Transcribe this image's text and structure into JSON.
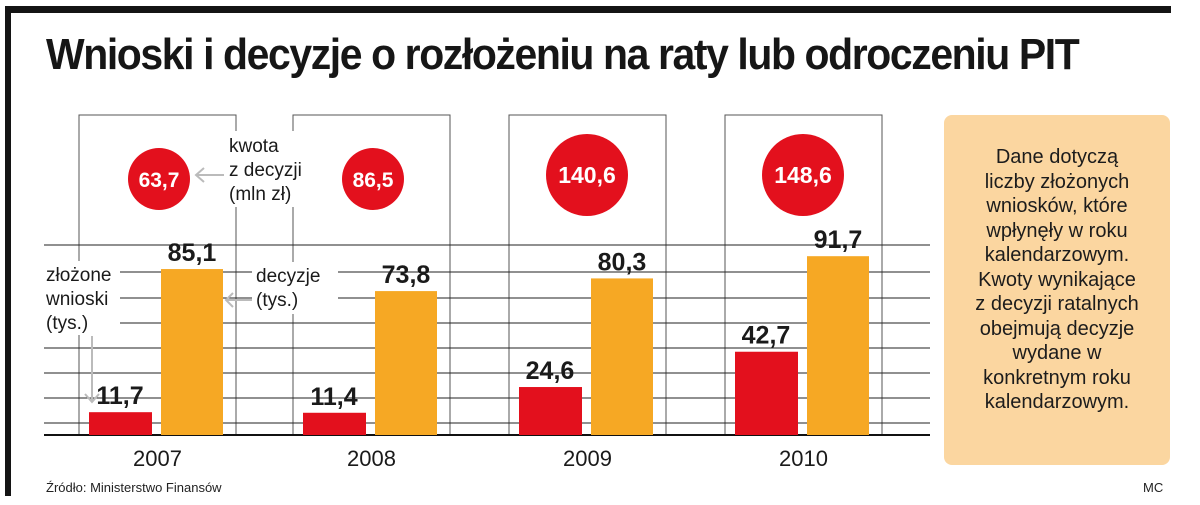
{
  "title": "Wnioski i decyzje o rozłożeniu na raty lub odroczeniu PIT",
  "colors": {
    "red": "#e3101d",
    "orange": "#f6a824",
    "grid": "#222222",
    "box": "#fbd6a0"
  },
  "chart_data": {
    "type": "bar",
    "categories": [
      "2007",
      "2008",
      "2009",
      "2010"
    ],
    "series": [
      {
        "name": "złożone wnioski (tys.)",
        "values": [
          11.7,
          11.4,
          24.6,
          42.7
        ],
        "labels": [
          "11,7",
          "11,4",
          "24,6",
          "42,7"
        ]
      },
      {
        "name": "decyzje (tys.)",
        "values": [
          85.1,
          73.8,
          80.3,
          91.7
        ],
        "labels": [
          "85,1",
          "73,8",
          "80,3",
          "91,7"
        ]
      }
    ],
    "amounts": {
      "name": "kwota z decyzji (mln zł)",
      "values": [
        63.7,
        86.5,
        140.6,
        148.6
      ],
      "labels": [
        "63,7",
        "86,5",
        "140,6",
        "148,6"
      ]
    },
    "annotations": {
      "amount_legend": [
        "kwota",
        "z decyzji",
        "(mln zł)"
      ],
      "filed_legend": [
        "złożone",
        "wnioski",
        "(tys.)"
      ],
      "decision_legend": [
        "decyzje",
        "(tys.)"
      ]
    },
    "ylim": [
      0,
      105
    ],
    "grid": true
  },
  "info_box": {
    "lines": [
      "Dane dotyczą",
      "liczby złożonych",
      "wniosków, które",
      "wpłynęły w roku",
      "kalendarzowym.",
      "Kwoty wynikające",
      "z decyzji ratalnych",
      "obejmują decyzje",
      "wydane w",
      "konkretnym roku",
      "kalendarzowym."
    ]
  },
  "footer": {
    "source": "Źródło: Ministerstwo Finansów",
    "credit": "MC"
  }
}
